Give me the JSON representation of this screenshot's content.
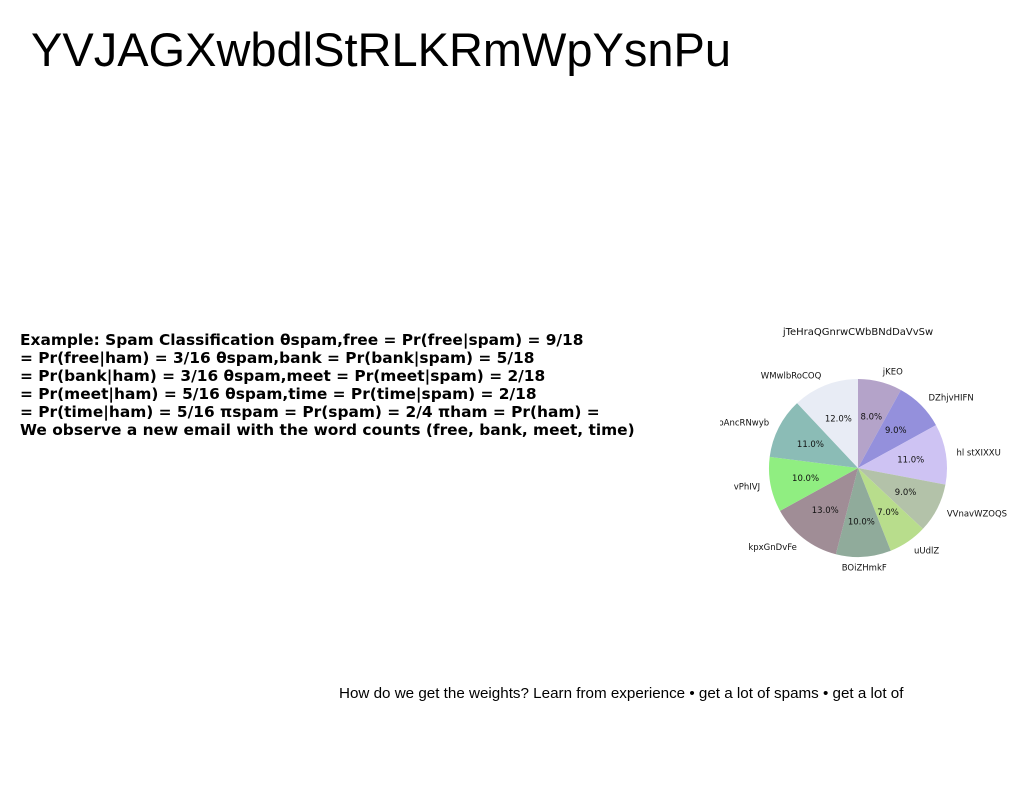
{
  "slide": {
    "title": "YVJAGXwbdlStRLKRmWpYsnPu",
    "caption": "How do we get the weights? Learn from experience • get a lot of spams • get a lot of"
  },
  "example": {
    "lines": [
      "Example: Spam Classification θspam,free = Pr(free|spam) = 9/18",
      "= Pr(free|ham) = 3/16 θspam,bank = Pr(bank|spam) = 5/18",
      "= Pr(bank|ham) = 3/16 θspam,meet = Pr(meet|spam) = 2/18",
      "= Pr(meet|ham) = 5/16 θspam,time = Pr(time|spam) = 2/18",
      "= Pr(time|ham) = 5/16 πspam = Pr(spam) = 2/4 πham = Pr(ham) =",
      "We observe a new email with the word counts (free, bank, meet, time)"
    ]
  },
  "chart_data": {
    "type": "pie",
    "title": "jTeHraQGnrwCWbBNdDaVvSw",
    "start_angle_deg": 90,
    "direction": "clockwise",
    "slices": [
      {
        "label": "jKEO",
        "value": 8.0,
        "pct_label": "8.0%",
        "color": "#b4a3c9"
      },
      {
        "label": "DZhjvHIFN",
        "value": 9.0,
        "pct_label": "9.0%",
        "color": "#9490dc"
      },
      {
        "label": "hl stXIXXU",
        "value": 11.0,
        "pct_label": "11.0%",
        "color": "#cec3f3"
      },
      {
        "label": "VVnavWZOQS",
        "value": 9.0,
        "pct_label": "9.0%",
        "color": "#b3c2a9"
      },
      {
        "label": "uUdlZ",
        "value": 7.0,
        "pct_label": "7.0%",
        "color": "#b8dd8c"
      },
      {
        "label": "BOiZHmkF",
        "value": 10.0,
        "pct_label": "10.0%",
        "color": "#90ab9b"
      },
      {
        "label": "kpxGnDvFe",
        "value": 13.0,
        "pct_label": "13.0%",
        "color": "#a08d96"
      },
      {
        "label": "vPhIVJ",
        "value": 10.0,
        "pct_label": "10.0%",
        "color": "#90ee81"
      },
      {
        "label": "oAncRNwyb",
        "value": 11.0,
        "pct_label": "11.0%",
        "color": "#8bbcb6"
      },
      {
        "label": "WMwlbRoCOQ",
        "value": 12.0,
        "pct_label": "12.0%",
        "color": "#e8ecf5"
      }
    ]
  }
}
